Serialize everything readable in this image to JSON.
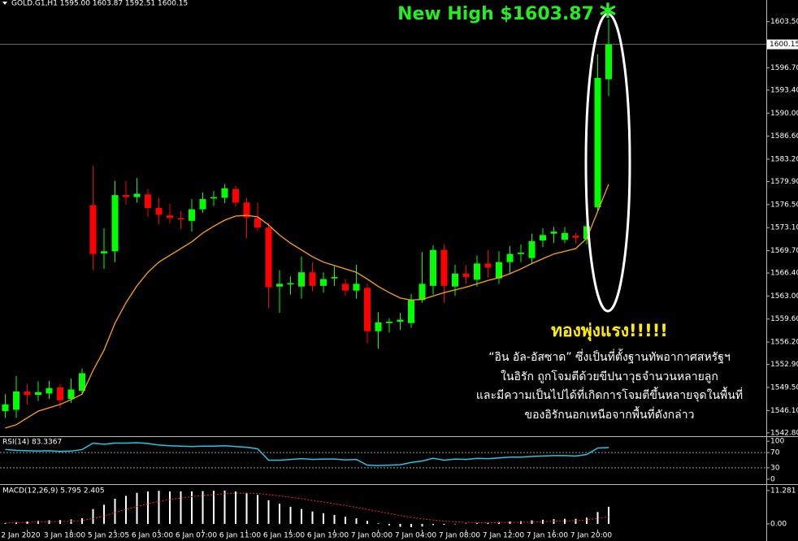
{
  "chart_data": [
    {
      "type": "candlestick",
      "header": "GOLD.G1,H1  1595.00 1603.87 1592.51 1600.15",
      "categories": [
        null,
        null,
        "2 Jan 2020",
        null,
        null,
        null,
        "3 Jan 18:00",
        null,
        null,
        null,
        "5 Jan 23:05",
        null,
        null,
        null,
        "6 Jan 03:00",
        null,
        null,
        null,
        "6 Jan 07:00",
        null,
        null,
        null,
        "6 Jan 11:00",
        null,
        null,
        null,
        "6 Jan 15:00",
        null,
        null,
        null,
        "6 Jan 19:00",
        null,
        null,
        null,
        "7 Jan 00:00",
        null,
        null,
        null,
        "7 Jan 04:00",
        null,
        null,
        null,
        "7 Jan 08:00",
        null,
        null,
        null,
        "7 Jan 12:00",
        null,
        null,
        null,
        "7 Jan 16:00",
        null,
        null,
        null,
        "7 Jan 20:00",
        null
      ],
      "open": [
        1546,
        1546.2,
        1548.9,
        1548.4,
        1548.6,
        1549.5,
        1547.8,
        1549.0,
        1576.4,
        1569.3,
        1569.6,
        1577.9,
        1577.6,
        1578.0,
        1576.0,
        1574.9,
        1574.5,
        1574.1,
        1575.8,
        1577.4,
        1577.5,
        1578.8,
        1576.8,
        1574.5,
        1573.1,
        1564.4,
        1564.7,
        1564.4,
        1566.5,
        1564.5,
        1565.6,
        1564.8,
        1563.8,
        1564.2,
        1557.8,
        1559.0,
        1559.2,
        1559.0,
        1562.4,
        1564.5,
        1569.8,
        1564.4,
        1566.3,
        1565.4,
        1567.8,
        1565.6,
        1568.0,
        1569.2,
        1568.6,
        1571.2,
        1572.2,
        1571.3,
        1571.9,
        1571.4,
        1576.1,
        1595.0
      ],
      "high": [
        1548.5,
        1551.2,
        1550,
        1550.4,
        1550.5,
        1550,
        1550.8,
        1552.3,
        1582.2,
        1573,
        1580,
        1580,
        1580.4,
        1578.8,
        1577.5,
        1576.6,
        1575.5,
        1577.3,
        1578.3,
        1578.5,
        1579.5,
        1579.3,
        1577.5,
        1576.8,
        1573.8,
        1566.8,
        1565.9,
        1568.8,
        1568,
        1566.5,
        1567.4,
        1565.5,
        1567.6,
        1564.8,
        1560.6,
        1559.7,
        1560.5,
        1563.3,
        1569.5,
        1570.5,
        1570.6,
        1567.6,
        1567.5,
        1569,
        1569.8,
        1569.6,
        1570.4,
        1570.6,
        1572.2,
        1573.0,
        1573.2,
        1573.2,
        1572.3,
        1577.7,
        1598.7,
        1603.87
      ],
      "low": [
        1545,
        1545.0,
        1547,
        1547.5,
        1547.8,
        1546.5,
        1547.2,
        1548.5,
        1566.8,
        1567,
        1568,
        1576.5,
        1576.8,
        1574.7,
        1573.6,
        1573.7,
        1572.9,
        1572.5,
        1575.3,
        1576.3,
        1576.7,
        1576.2,
        1571.5,
        1572.6,
        1561.2,
        1560.5,
        1563.2,
        1562.6,
        1563.7,
        1563.5,
        1564.5,
        1563,
        1562.6,
        1556,
        1555.2,
        1557.6,
        1558,
        1558.3,
        1562,
        1563.2,
        1562,
        1563,
        1564.8,
        1564.4,
        1565.7,
        1564.8,
        1566.3,
        1568,
        1567.8,
        1570.2,
        1570.8,
        1570.8,
        1570.7,
        1570.6,
        1575.5,
        1592.51
      ],
      "close": [
        1547,
        1548.9,
        1548.4,
        1548.8,
        1549.4,
        1547.6,
        1549.2,
        1551.6,
        1569.2,
        1569.6,
        1577.9,
        1577.6,
        1578.1,
        1576.0,
        1575.0,
        1574.5,
        1574.3,
        1575.8,
        1577.3,
        1577.6,
        1578.9,
        1576.8,
        1574.6,
        1573.1,
        1564.3,
        1564.8,
        1564.9,
        1566.5,
        1564.5,
        1565.5,
        1565.8,
        1563.8,
        1564.8,
        1557.8,
        1559.1,
        1559.2,
        1559.5,
        1562.4,
        1564.8,
        1569.8,
        1564.5,
        1566.3,
        1565.8,
        1567.8,
        1567.2,
        1568.0,
        1569.2,
        1569.4,
        1571.1,
        1572.0,
        1572.5,
        1572.3,
        1571.6,
        1573.3,
        1595.2,
        1600.15
      ],
      "up_color": "#00ff00",
      "down_color": "#ff0000",
      "ma": {
        "color": "#ffa500",
        "values": [
          1543.5,
          1544,
          1545,
          1546,
          1546.5,
          1547,
          1547.7,
          1548.5,
          1552,
          1555,
          1559,
          1562,
          1564.5,
          1566.5,
          1568,
          1569,
          1570,
          1571,
          1572.3,
          1573.3,
          1574.2,
          1574.8,
          1574.9,
          1574.7,
          1573.5,
          1572,
          1570.8,
          1569.8,
          1568.8,
          1568,
          1567.5,
          1567,
          1566.5,
          1565.5,
          1564.4,
          1563.5,
          1562.7,
          1562.4,
          1562.5,
          1563,
          1563.5,
          1563.9,
          1564.3,
          1564.8,
          1565.3,
          1565.7,
          1566.3,
          1567,
          1567.8,
          1568.5,
          1569.2,
          1569.6,
          1570,
          1571.5,
          1575.5,
          1579.5
        ]
      },
      "current_price": 1600.15,
      "ylim": [
        1542.3,
        1606.7
      ],
      "yticks": [
        {
          "value": 1603.5,
          "label": "1603.50"
        },
        {
          "value": 1596.7,
          "label": "1596.70"
        },
        {
          "value": 1593.4,
          "label": "1593.40"
        },
        {
          "value": 1590,
          "label": "1590.00"
        },
        {
          "value": 1586.6,
          "label": "1586.60"
        },
        {
          "value": 1583.2,
          "label": "1583.20"
        },
        {
          "value": 1579.9,
          "label": "1579.90"
        },
        {
          "value": 1576.5,
          "label": "1576.50"
        },
        {
          "value": 1573.1,
          "label": "1573.10"
        },
        {
          "value": 1569.7,
          "label": "1569.70"
        },
        {
          "value": 1566.4,
          "label": "1566.40"
        },
        {
          "value": 1563,
          "label": "1563.00"
        },
        {
          "value": 1559.6,
          "label": "1559.60"
        },
        {
          "value": 1556.2,
          "label": "1556.20"
        },
        {
          "value": 1552.9,
          "label": "1552.90"
        },
        {
          "value": 1549.5,
          "label": "1549.50"
        },
        {
          "value": 1546.1,
          "label": "1546.10"
        },
        {
          "value": 1542.8,
          "label": "1542.80"
        }
      ],
      "headline": "New High $1603.87",
      "headline_mark": "*",
      "callout": "ทองพุ่งแรง!!!!!",
      "text_lines": [
        "“อิน อัล-อัสซาด” ซึ่งเป็นที่ตั้งฐานทัพอากาศสหรัฐฯ",
        "ในอิรัก ถูกโจมตีด้วยขีปนาวุธจำนวนหลายลูก",
        "และมีความเป็นไปได้ที่เกิดการโจมตีขึ้นหลายจุดในพื้นที่",
        "ของอิรักนอกเหนือจากพื้นที่ดังกล่าว"
      ]
    },
    {
      "type": "line",
      "label": "RSI(14) 83.3367",
      "color": "#1ec8e6",
      "values": [
        78,
        76,
        75,
        74,
        75,
        73,
        74,
        78,
        95,
        92,
        95,
        95,
        96,
        94,
        90,
        88,
        87,
        86,
        87,
        87,
        88,
        86,
        84,
        80,
        50,
        50,
        52,
        54,
        52,
        53,
        53,
        51,
        52,
        37,
        36,
        37,
        38,
        44,
        48,
        55,
        50,
        53,
        52,
        55,
        54,
        56,
        58,
        58,
        60,
        61,
        62,
        62,
        61,
        65,
        82,
        83.3367
      ],
      "levels": [
        70,
        30
      ],
      "ylim": [
        -13,
        111
      ],
      "yticks": [
        100,
        70,
        30,
        0
      ]
    },
    {
      "type": "bar",
      "label": "MACD(12,26,9) 5.795 2.405",
      "color": "#ffffff",
      "values": [
        0.3,
        0.6,
        0.8,
        1.0,
        1.2,
        1.3,
        1.5,
        1.9,
        5,
        6.5,
        8.5,
        9.5,
        10.5,
        11,
        11.2,
        11,
        11,
        11,
        11.1,
        11.2,
        11.28,
        11,
        10.5,
        9.8,
        8.0,
        6.8,
        5.8,
        5.0,
        4.2,
        3.6,
        3.0,
        2.4,
        1.9,
        1.0,
        0.2,
        -0.5,
        -1.0,
        -1.1,
        -0.9,
        -0.4,
        -0.3,
        -0.1,
        0.1,
        0.3,
        0.4,
        0.6,
        0.8,
        0.9,
        1.2,
        1.4,
        1.6,
        1.7,
        1.7,
        2.1,
        4.0,
        5.795
      ],
      "signal": {
        "color": "#ff2020",
        "values": [
          0.3,
          0.4,
          0.5,
          0.6,
          0.7,
          0.8,
          0.9,
          1.1,
          1.8,
          2.7,
          3.8,
          4.9,
          5.9,
          6.8,
          7.6,
          8.2,
          8.8,
          9.2,
          9.6,
          9.9,
          10.2,
          10.4,
          10.4,
          10.3,
          9.9,
          9.5,
          9.0,
          8.5,
          7.9,
          7.4,
          6.8,
          6.2,
          5.6,
          4.9,
          4.2,
          3.5,
          2.8,
          2.2,
          1.7,
          1.3,
          0.9,
          0.7,
          0.5,
          0.4,
          0.4,
          0.4,
          0.5,
          0.5,
          0.6,
          0.7,
          0.9,
          1.0,
          1.1,
          1.3,
          1.9,
          2.405
        ]
      },
      "ylim": [
        -1.4,
        12.9
      ],
      "yticks": [
        11.281,
        {
          "value": 0,
          "label": "0.00"
        }
      ]
    }
  ]
}
